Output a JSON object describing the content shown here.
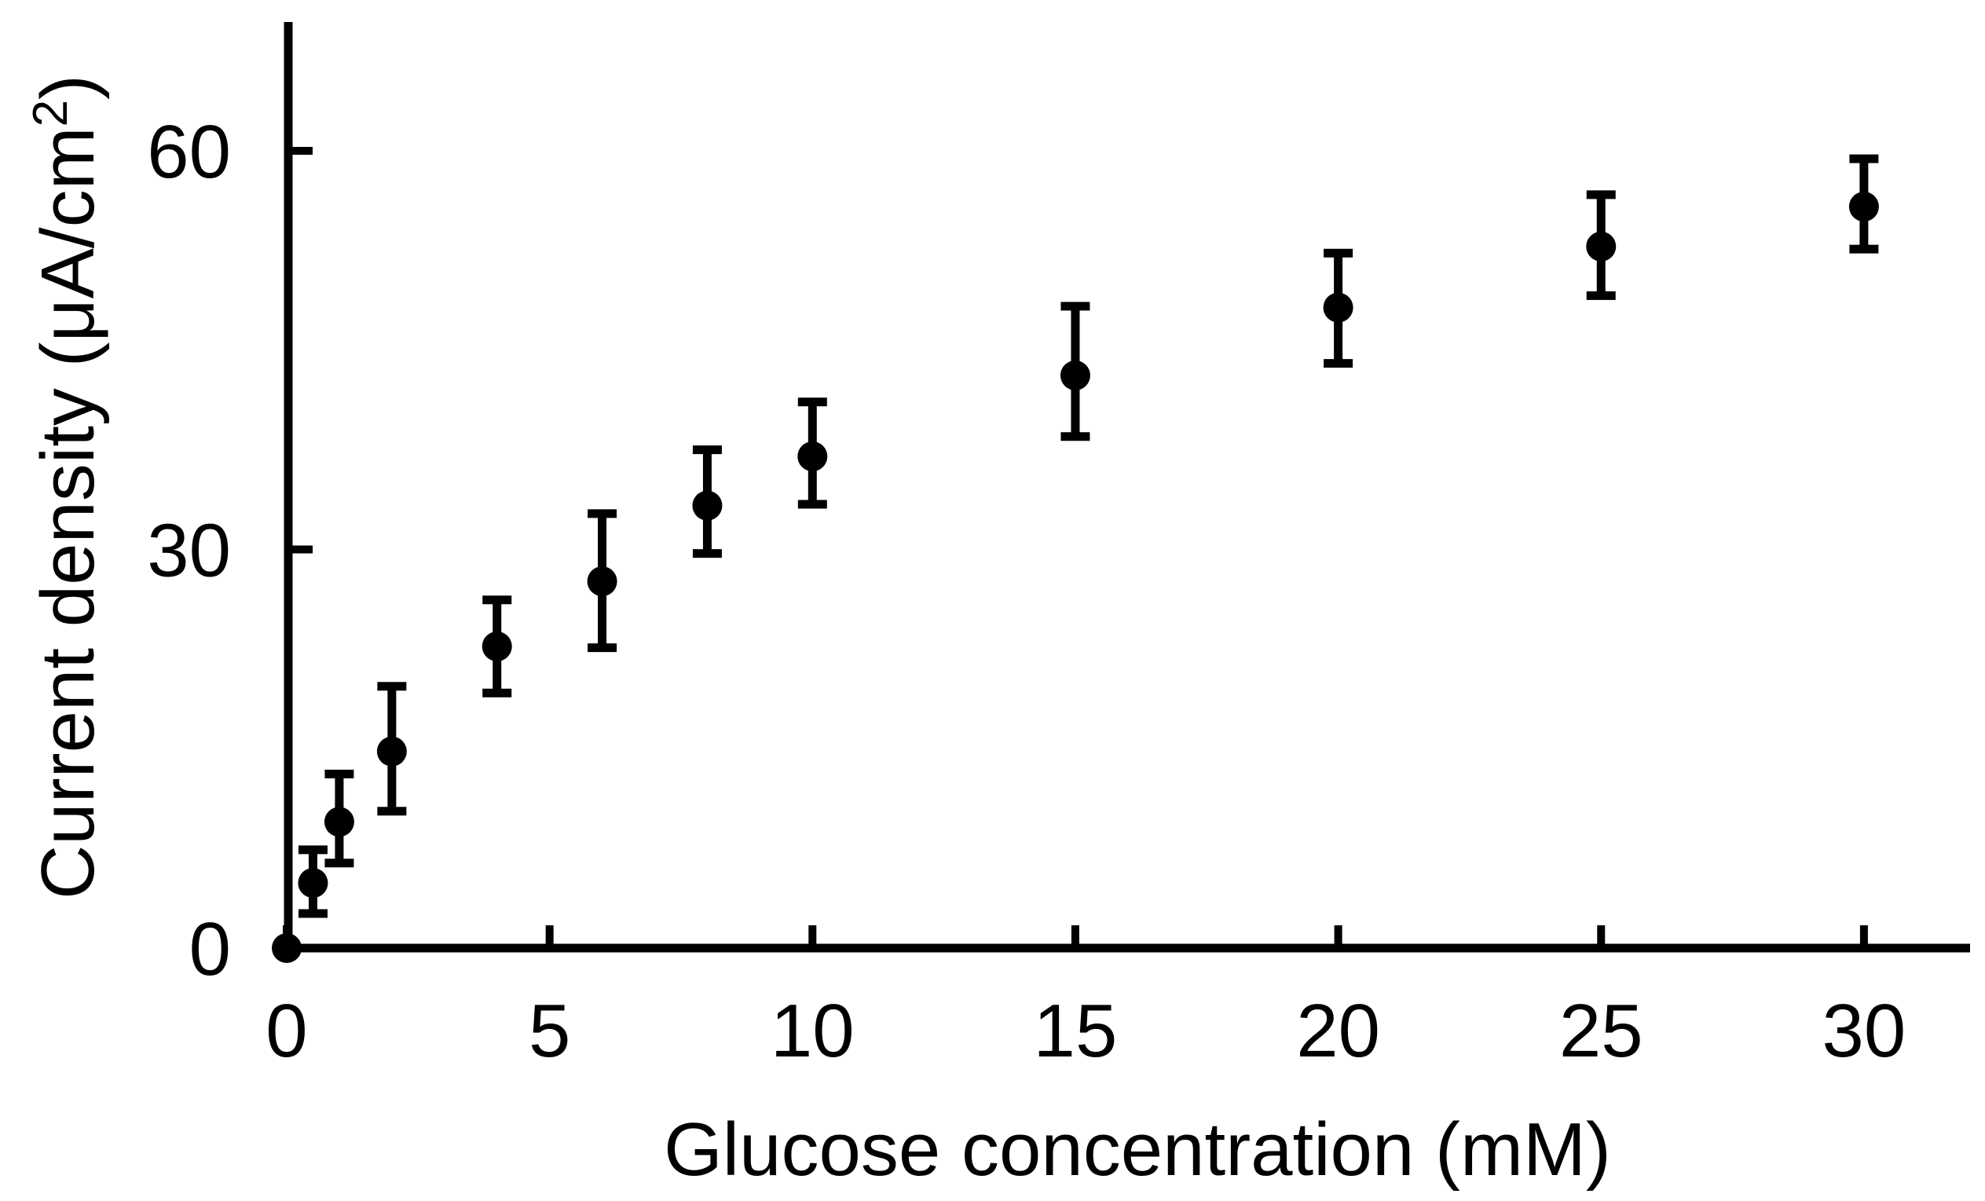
{
  "figure": {
    "background_color": "#ffffff",
    "ink_color": "#000000"
  },
  "chart_data": {
    "type": "scatter",
    "title": "",
    "xlabel": "Glucose concentration (mM)",
    "ylabel": "Current density (μA/cm²)",
    "ylabel_parts": {
      "pre": "Current density (μA/cm",
      "sup": "2",
      "post": ")"
    },
    "xlim": [
      0,
      32
    ],
    "ylim": [
      0,
      69.7
    ],
    "x_ticks": [
      0,
      5,
      10,
      15,
      20,
      25,
      30
    ],
    "y_ticks": [
      0,
      30,
      60
    ],
    "grid": false,
    "legend": null,
    "marker": "filled-circle",
    "error_bars": "vertical-with-caps",
    "points": [
      {
        "x": 0,
        "y": 0,
        "y_lo": null,
        "y_hi": null
      },
      {
        "x": 0.5,
        "y": 4.9,
        "y_lo": 2.6,
        "y_hi": 7.4
      },
      {
        "x": 1,
        "y": 9.5,
        "y_lo": 6.4,
        "y_hi": 13.1
      },
      {
        "x": 2,
        "y": 14.8,
        "y_lo": 10.3,
        "y_hi": 19.7
      },
      {
        "x": 4,
        "y": 22.7,
        "y_lo": 19.2,
        "y_hi": 26.2
      },
      {
        "x": 6,
        "y": 27.6,
        "y_lo": 22.6,
        "y_hi": 32.7
      },
      {
        "x": 8,
        "y": 33.3,
        "y_lo": 29.7,
        "y_hi": 37.5
      },
      {
        "x": 10,
        "y": 37.0,
        "y_lo": 33.4,
        "y_hi": 41.1
      },
      {
        "x": 15,
        "y": 43.1,
        "y_lo": 38.5,
        "y_hi": 48.3
      },
      {
        "x": 20,
        "y": 48.2,
        "y_lo": 44.0,
        "y_hi": 52.3
      },
      {
        "x": 25,
        "y": 52.8,
        "y_lo": 49.1,
        "y_hi": 56.7
      },
      {
        "x": 30,
        "y": 55.8,
        "y_lo": 52.6,
        "y_hi": 59.4
      }
    ]
  }
}
